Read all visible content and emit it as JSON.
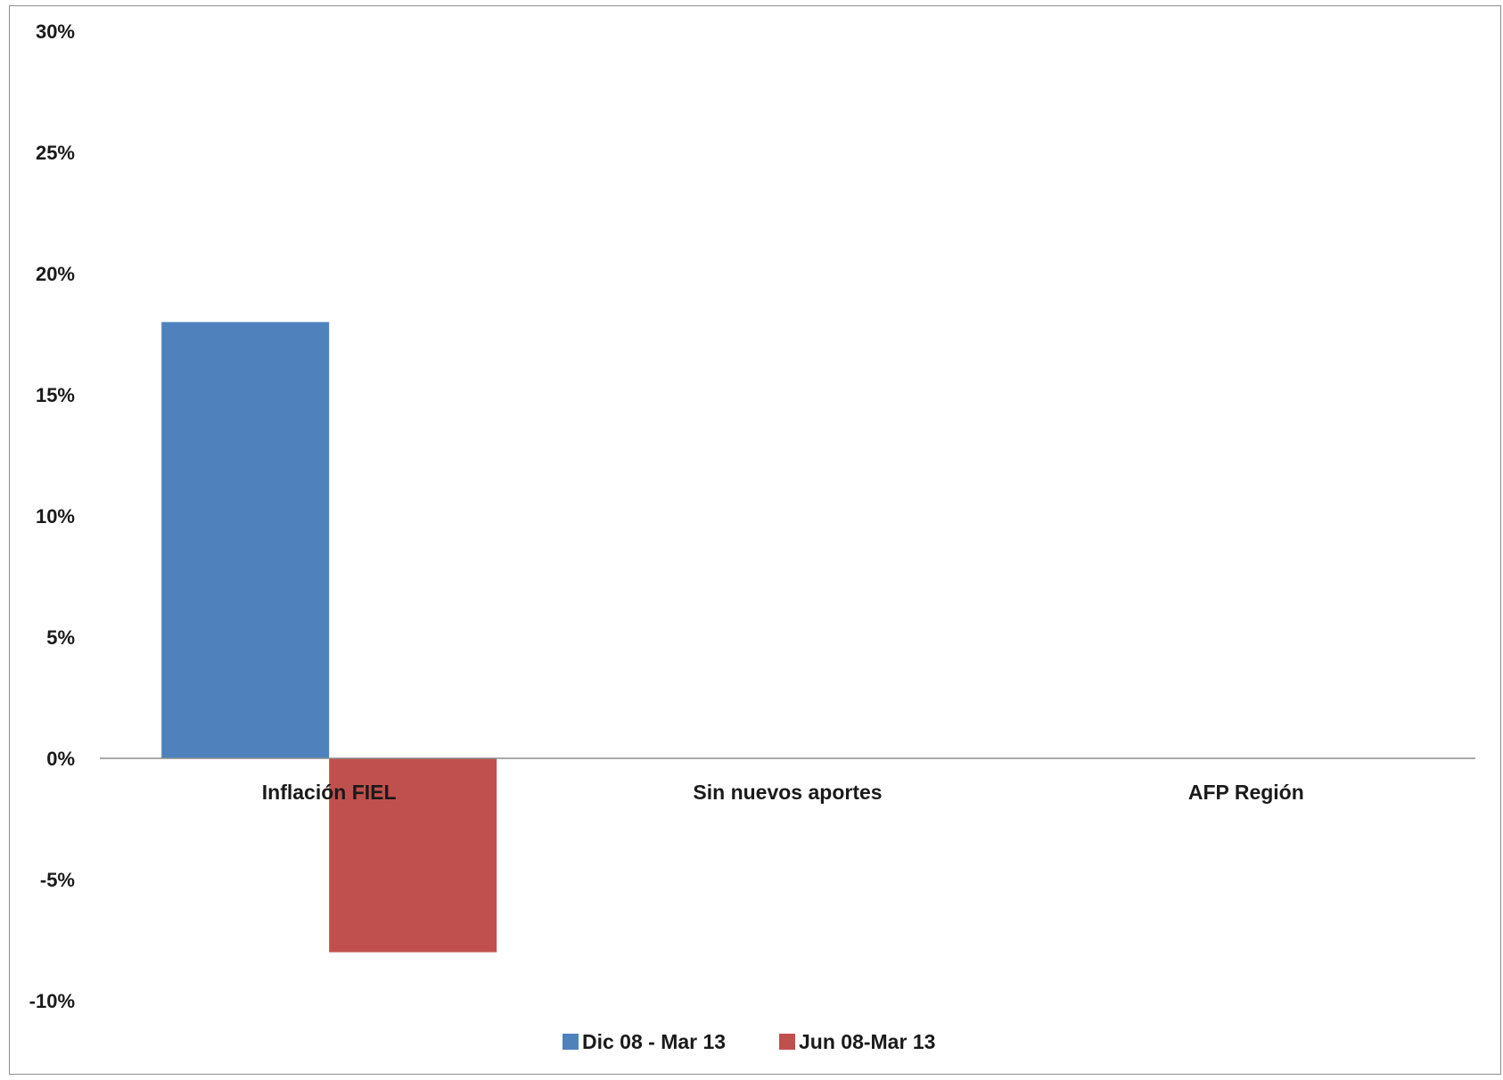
{
  "chart_data": {
    "type": "bar",
    "title": "",
    "xlabel": "",
    "ylabel": "",
    "categories": [
      "Inflación FIEL",
      "Sin nuevos aportes",
      "AFP Región"
    ],
    "series": [
      {
        "name": "Dic 08 - Mar 13",
        "color": "#4f81bd",
        "values": [
          18,
          null,
          null
        ]
      },
      {
        "name": "Jun 08-Mar 13",
        "color": "#c0504d",
        "values": [
          -8,
          null,
          null
        ]
      }
    ],
    "ylim": [
      -10,
      30
    ],
    "yticks": [
      30,
      25,
      20,
      15,
      10,
      5,
      0,
      -5,
      -10
    ],
    "ytick_labels": [
      "30%",
      "25%",
      "20%",
      "15%",
      "10%",
      "5%",
      "0%",
      "-5%",
      "-10%"
    ],
    "grid": false,
    "legend_position": "bottom"
  }
}
